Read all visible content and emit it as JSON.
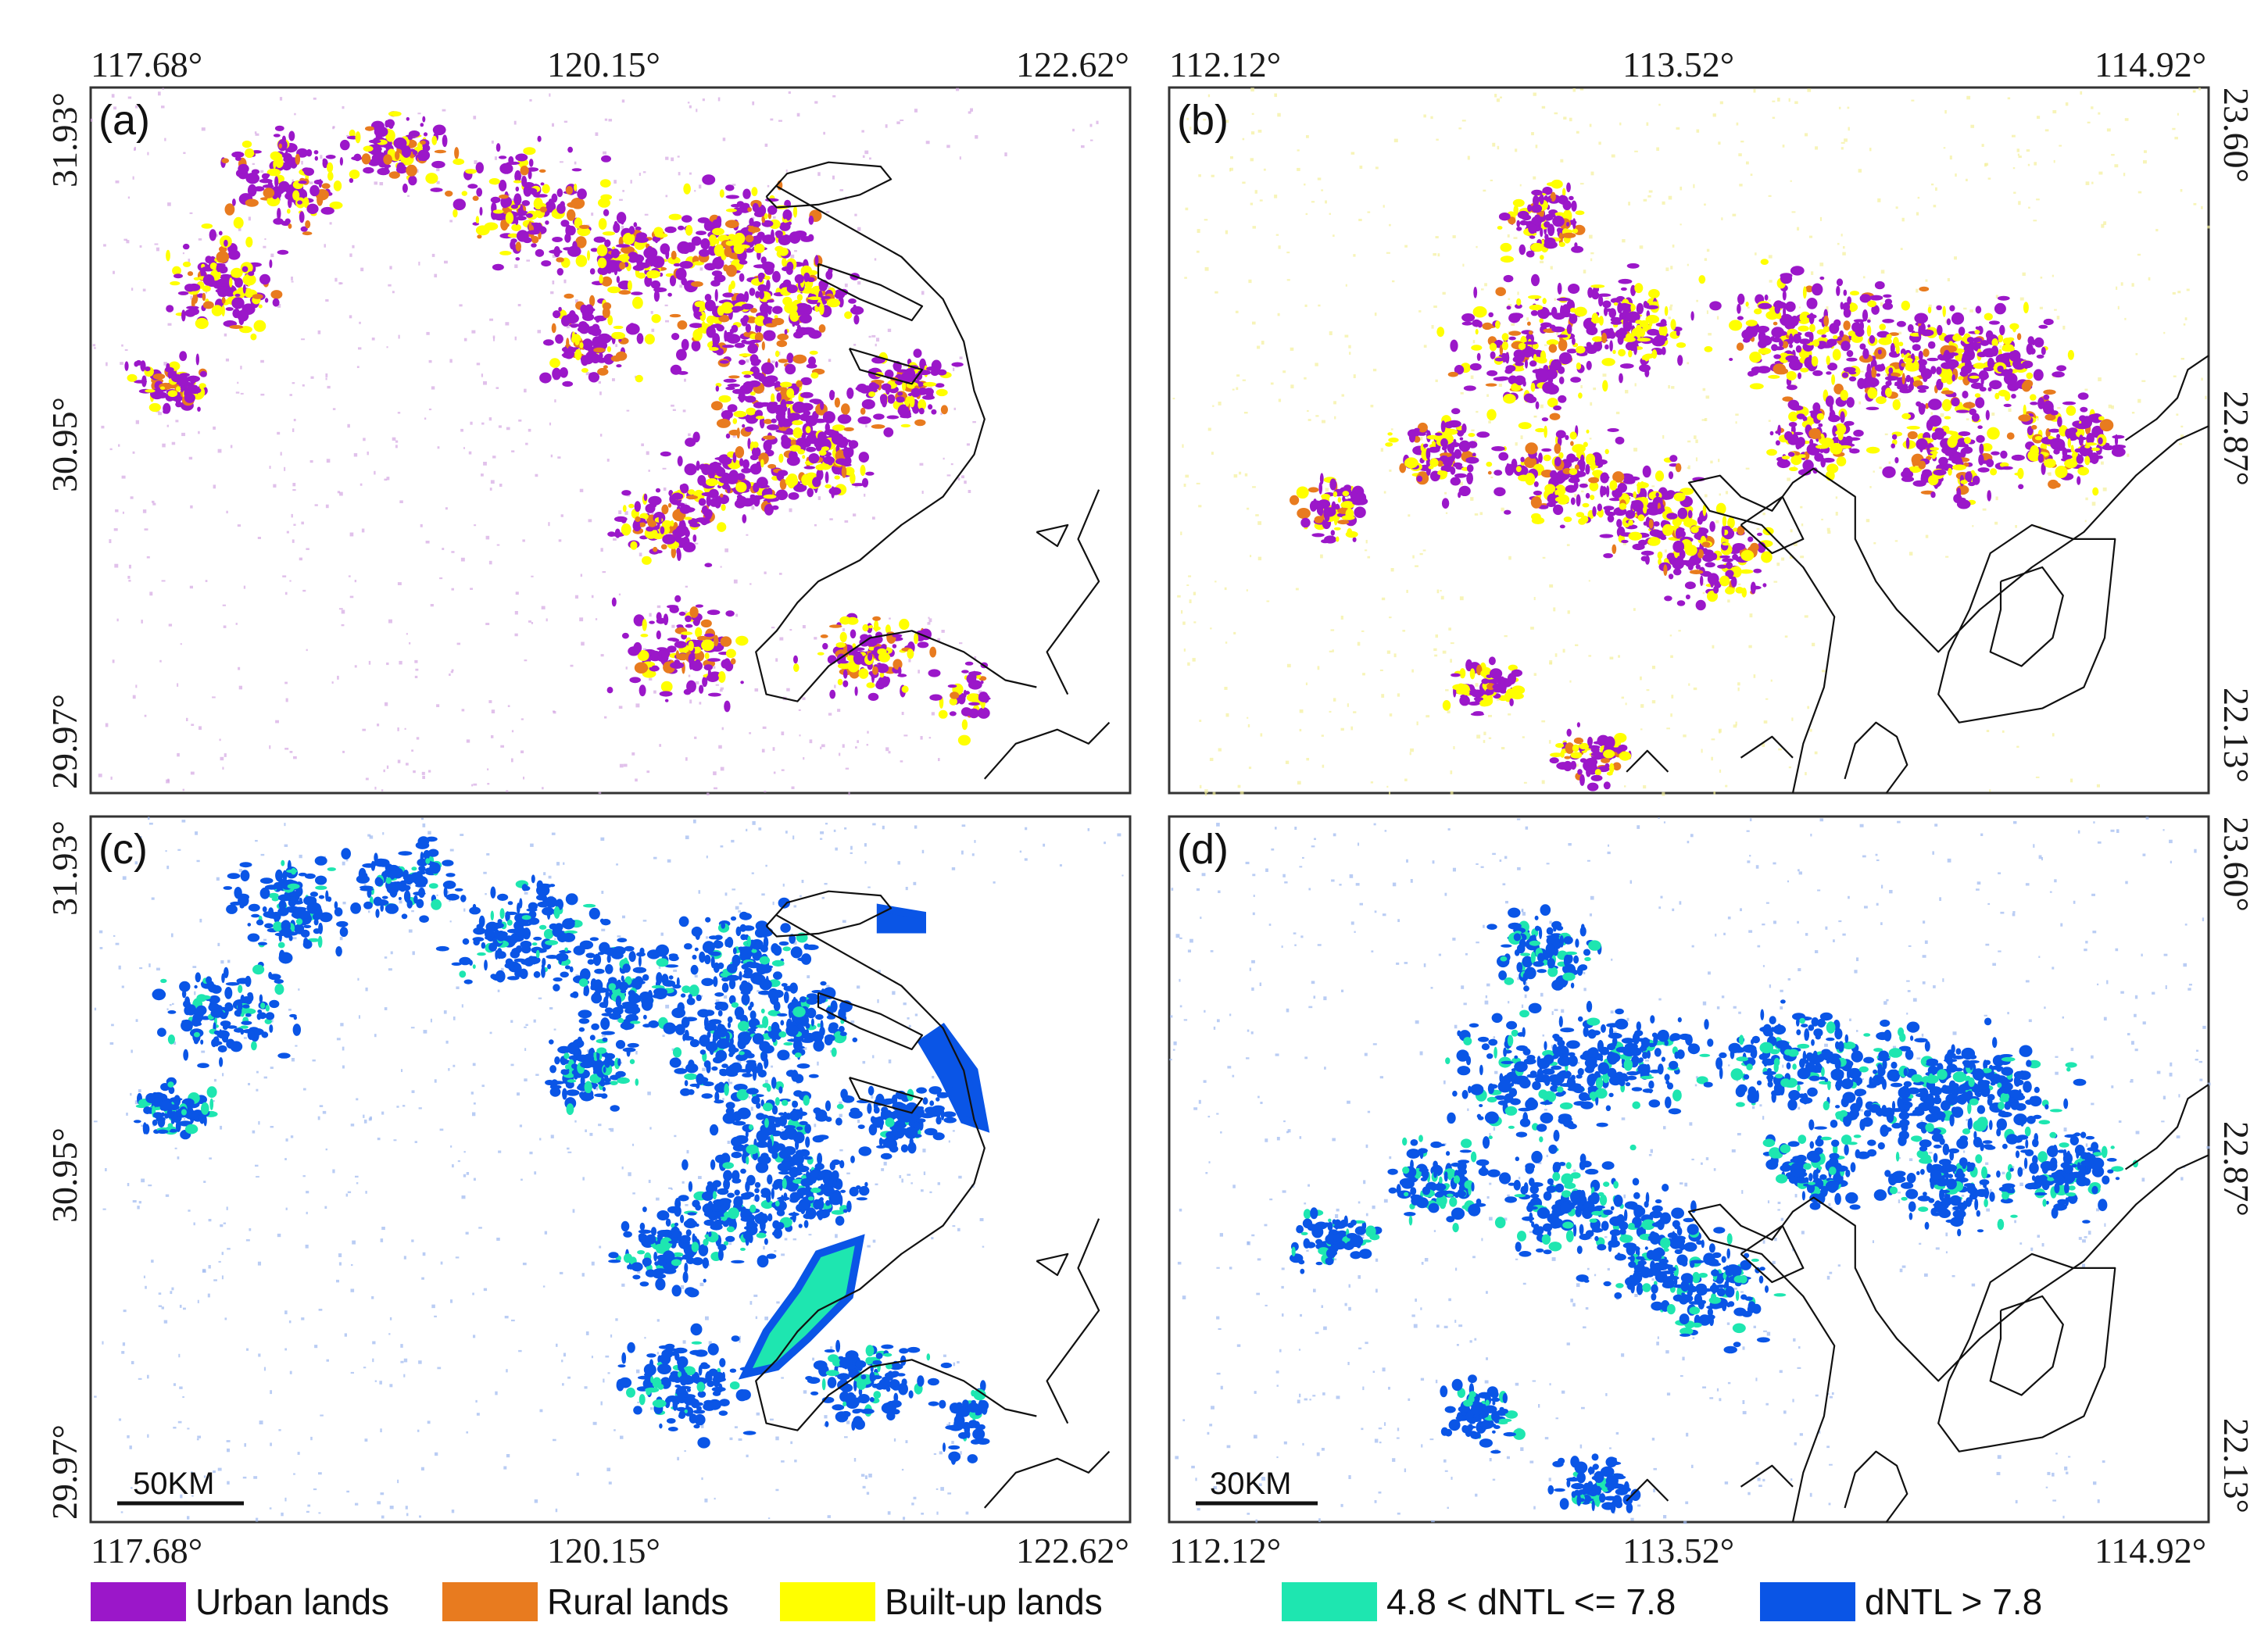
{
  "panels": [
    {
      "id": "a",
      "label": "(a)",
      "lon_ticks": [
        "117.68°",
        "120.15°",
        "122.62°"
      ],
      "lat_ticks": [
        "31.93°",
        "30.95°",
        "29.97°"
      ],
      "scale_label": "",
      "layers": [
        "urban",
        "rural",
        "builtup"
      ]
    },
    {
      "id": "b",
      "label": "(b)",
      "lon_ticks": [
        "112.12°",
        "113.52°",
        "114.92°"
      ],
      "lat_ticks": [
        "23.60°",
        "22.87°",
        "22.13°"
      ],
      "scale_label": "",
      "layers": [
        "urban",
        "rural",
        "builtup"
      ]
    },
    {
      "id": "c",
      "label": "(c)",
      "lon_ticks": [
        "117.68°",
        "120.15°",
        "122.62°"
      ],
      "lat_ticks": [
        "31.93°",
        "30.95°",
        "29.97°"
      ],
      "scale_label": "50KM",
      "layers": [
        "dntl_mid",
        "dntl_high"
      ]
    },
    {
      "id": "d",
      "label": "(d)",
      "lon_ticks": [
        "112.12°",
        "113.52°",
        "114.92°"
      ],
      "lat_ticks": [
        "23.60°",
        "22.87°",
        "22.13°"
      ],
      "scale_label": "30KM",
      "layers": [
        "dntl_mid",
        "dntl_high"
      ]
    }
  ],
  "legend": {
    "land_types": [
      {
        "key": "urban",
        "label": "Urban lands",
        "color": "#9b17c9"
      },
      {
        "key": "rural",
        "label": "Rural lands",
        "color": "#e87b1f"
      },
      {
        "key": "builtup",
        "label": "Built-up lands",
        "color": "#ffff00"
      }
    ],
    "dntl_classes": [
      {
        "key": "dntl_mid",
        "label": "4.8 < dNTL <= 7.8",
        "color": "#1ee6b0"
      },
      {
        "key": "dntl_high",
        "label": "dNTL > 7.8",
        "color": "#0a55e6"
      }
    ]
  },
  "colors": {
    "frame": "#333333",
    "coastline": "#111111",
    "faint_urban": "#d4a6e2",
    "faint_dntl": "#9cb8f0"
  }
}
